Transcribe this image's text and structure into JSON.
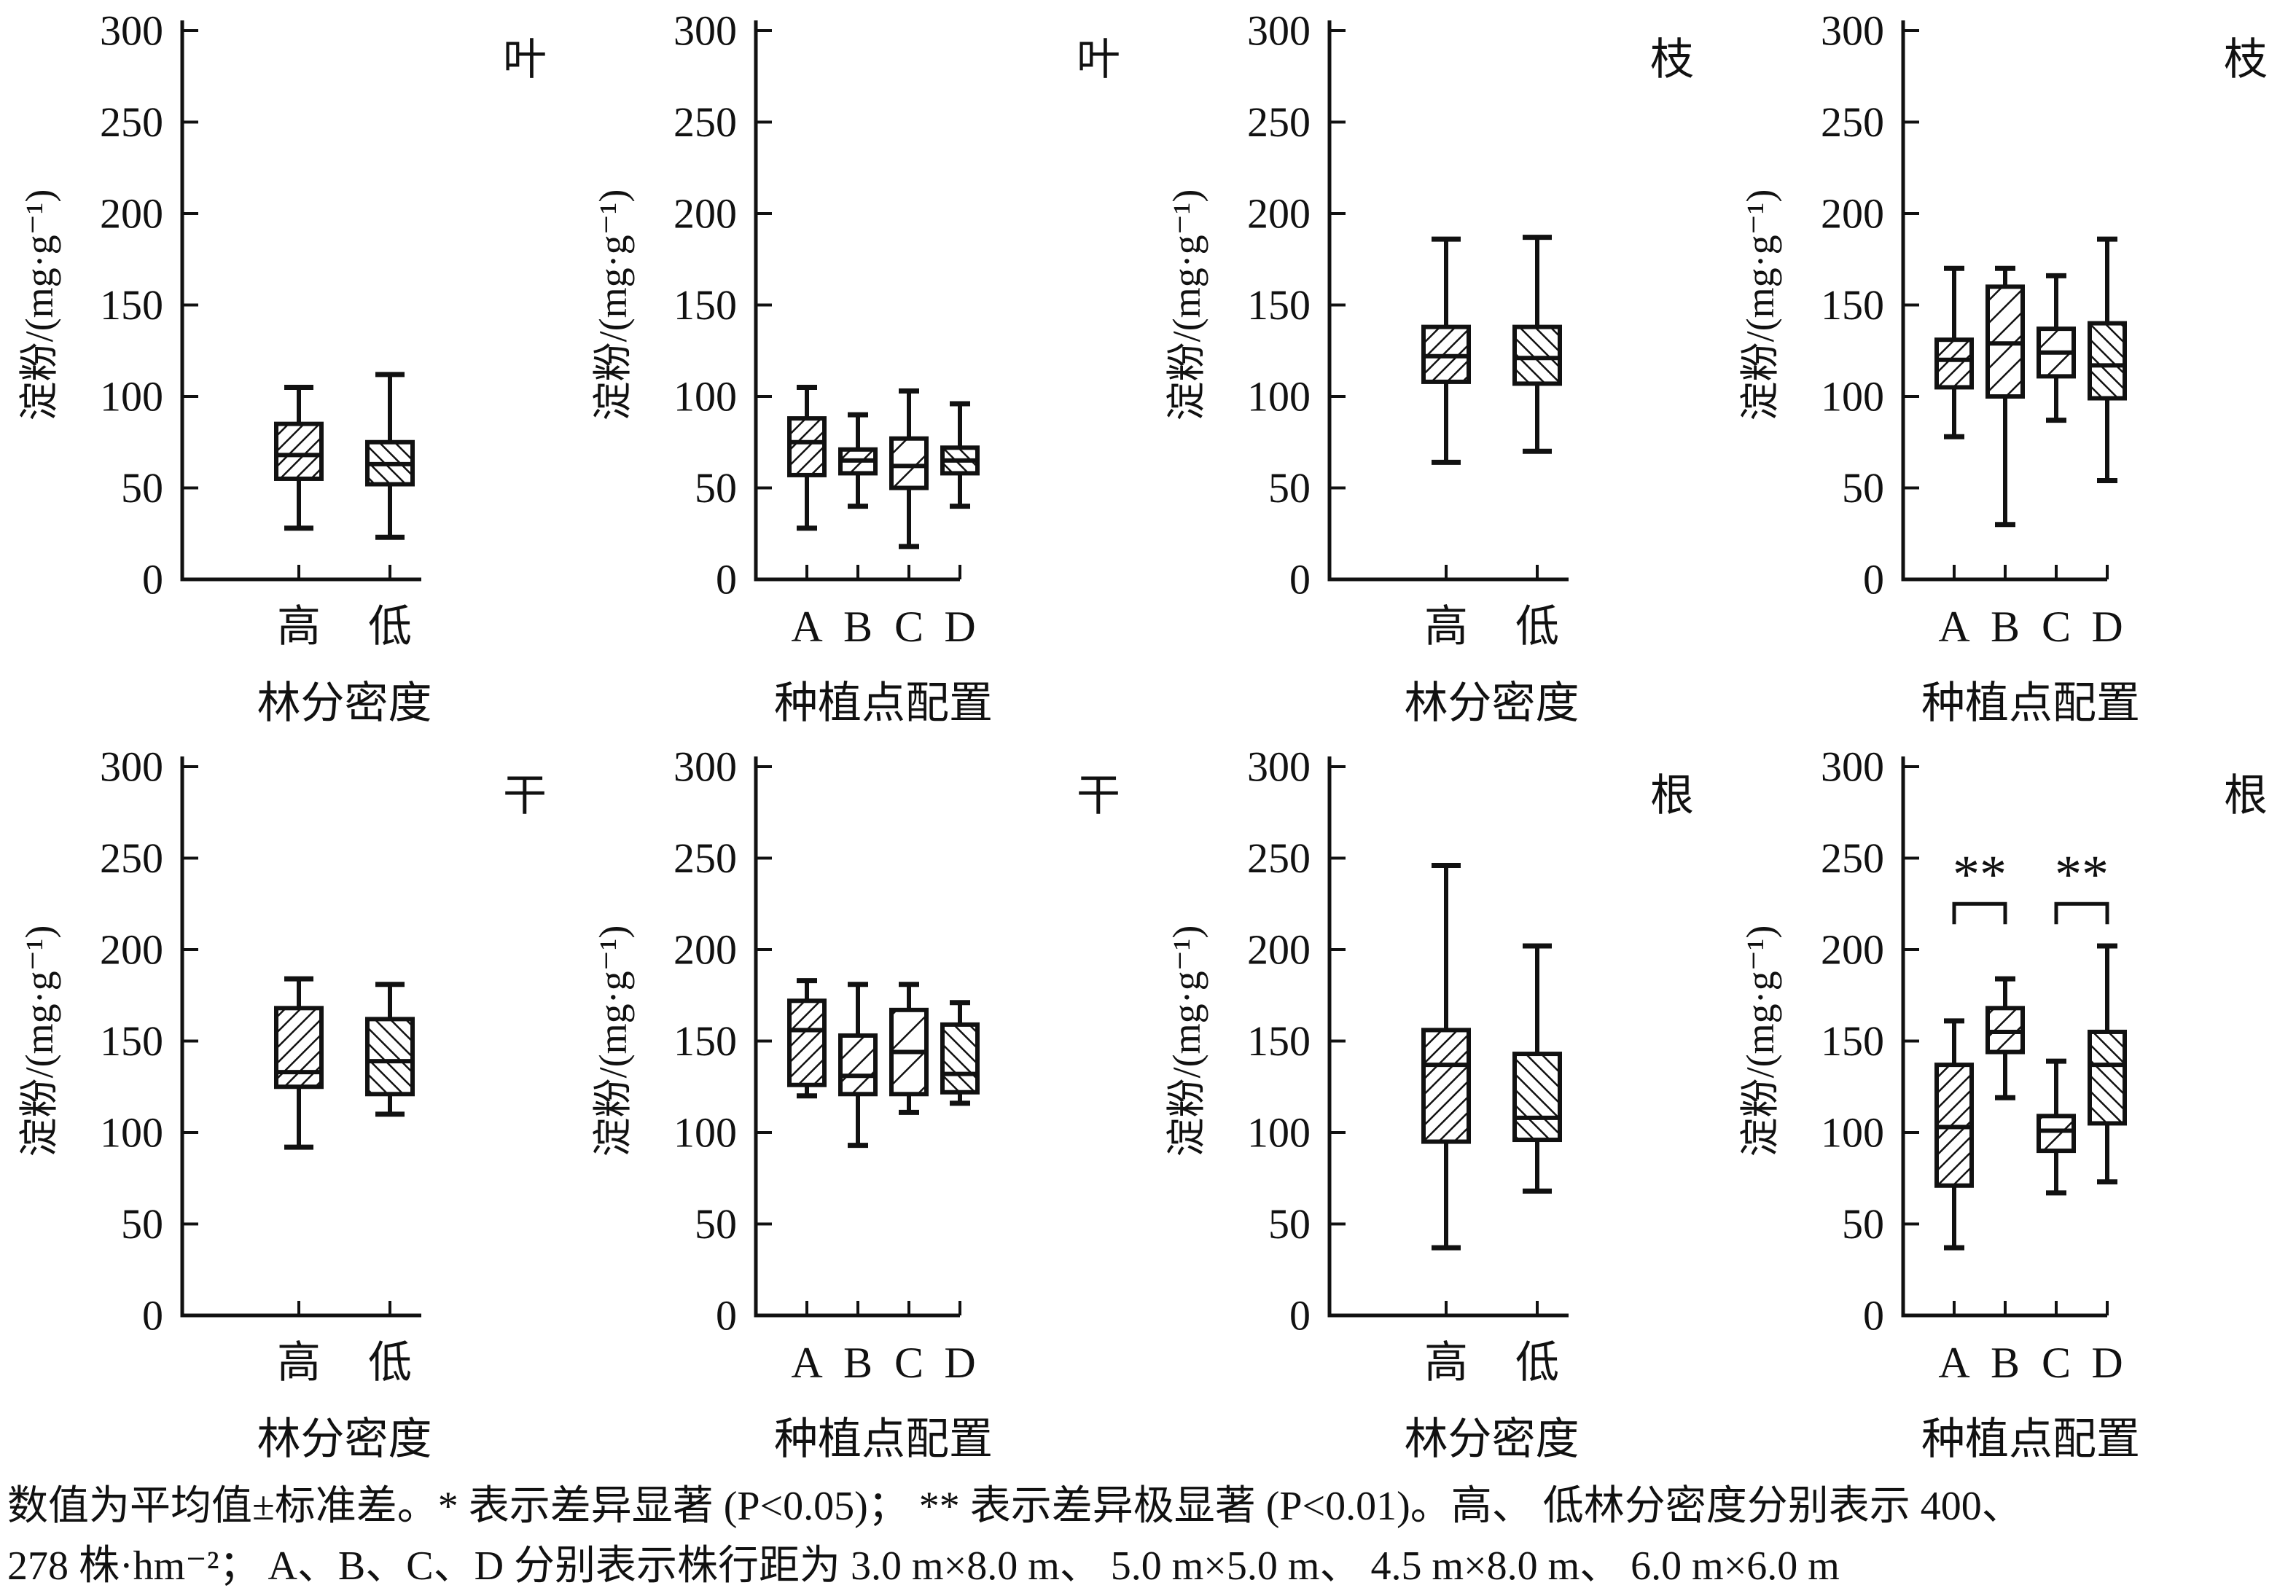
{
  "figure": {
    "ylabel": "淀粉/(mg·g⁻¹)",
    "ink_color": "#111111",
    "background_color": "#ffffff",
    "caption_line1": "数值为平均值±标准差。* 表示差异显著 (P<0.05)； ** 表示差异极显著 (P<0.01)。高、 低林分密度分别表示 400、",
    "caption_line2": "278 株·hm⁻²； A、B、C、D 分别表示株行距为 3.0 m×8.0 m、 5.0 m×5.0 m、 4.5 m×8.0 m、 6.0 m×6.0 m"
  },
  "chart_data": [
    {
      "type": "box",
      "title": "叶",
      "xlabel": "林分密度",
      "ylabel": "淀粉/(mg·g⁻¹)",
      "ylim": [
        0,
        300
      ],
      "yticks": [
        0,
        50,
        100,
        150,
        200,
        250,
        300
      ],
      "grid": false,
      "categories": [
        "高",
        "低"
      ],
      "boxes": [
        {
          "category": "高",
          "hatch": "fwd-dense",
          "whisker_low": 28,
          "q1": 55,
          "median": 68,
          "q3": 85,
          "whisker_high": 105
        },
        {
          "category": "低",
          "hatch": "back",
          "whisker_low": 23,
          "q1": 52,
          "median": 63,
          "q3": 75,
          "whisker_high": 112
        }
      ],
      "significance": []
    },
    {
      "type": "box",
      "title": "叶",
      "xlabel": "种植点配置",
      "ylabel": "淀粉/(mg·g⁻¹)",
      "ylim": [
        0,
        300
      ],
      "yticks": [
        0,
        50,
        100,
        150,
        200,
        250,
        300
      ],
      "grid": false,
      "categories": [
        "A",
        "B",
        "C",
        "D"
      ],
      "boxes": [
        {
          "category": "A",
          "hatch": "fwd-dense",
          "whisker_low": 28,
          "q1": 57,
          "median": 75,
          "q3": 88,
          "whisker_high": 105
        },
        {
          "category": "B",
          "hatch": "fwd-mid",
          "whisker_low": 40,
          "q1": 58,
          "median": 65,
          "q3": 71,
          "whisker_high": 90
        },
        {
          "category": "C",
          "hatch": "fwd-sparse",
          "whisker_low": 18,
          "q1": 50,
          "median": 62,
          "q3": 77,
          "whisker_high": 103
        },
        {
          "category": "D",
          "hatch": "back",
          "whisker_low": 40,
          "q1": 58,
          "median": 65,
          "q3": 72,
          "whisker_high": 96
        }
      ],
      "significance": []
    },
    {
      "type": "box",
      "title": "枝",
      "xlabel": "林分密度",
      "ylabel": "淀粉/(mg·g⁻¹)",
      "ylim": [
        0,
        300
      ],
      "yticks": [
        0,
        50,
        100,
        150,
        200,
        250,
        300
      ],
      "grid": false,
      "categories": [
        "高",
        "低"
      ],
      "boxes": [
        {
          "category": "高",
          "hatch": "fwd-dense",
          "whisker_low": 64,
          "q1": 108,
          "median": 122,
          "q3": 138,
          "whisker_high": 186
        },
        {
          "category": "低",
          "hatch": "back",
          "whisker_low": 70,
          "q1": 107,
          "median": 121,
          "q3": 138,
          "whisker_high": 187
        }
      ],
      "significance": []
    },
    {
      "type": "box",
      "title": "枝",
      "xlabel": "种植点配置",
      "ylabel": "淀粉/(mg·g⁻¹)",
      "ylim": [
        0,
        300
      ],
      "yticks": [
        0,
        50,
        100,
        150,
        200,
        250,
        300
      ],
      "grid": false,
      "categories": [
        "A",
        "B",
        "C",
        "D"
      ],
      "boxes": [
        {
          "category": "A",
          "hatch": "fwd-dense",
          "whisker_low": 78,
          "q1": 105,
          "median": 120,
          "q3": 131,
          "whisker_high": 170
        },
        {
          "category": "B",
          "hatch": "fwd-mid",
          "whisker_low": 30,
          "q1": 100,
          "median": 129,
          "q3": 160,
          "whisker_high": 170
        },
        {
          "category": "C",
          "hatch": "fwd-sparse",
          "whisker_low": 87,
          "q1": 111,
          "median": 124,
          "q3": 137,
          "whisker_high": 166
        },
        {
          "category": "D",
          "hatch": "back",
          "whisker_low": 54,
          "q1": 99,
          "median": 117,
          "q3": 140,
          "whisker_high": 186
        }
      ],
      "significance": []
    },
    {
      "type": "box",
      "title": "干",
      "xlabel": "林分密度",
      "ylabel": "淀粉/(mg·g⁻¹)",
      "ylim": [
        0,
        300
      ],
      "yticks": [
        0,
        50,
        100,
        150,
        200,
        250,
        300
      ],
      "grid": false,
      "categories": [
        "高",
        "低"
      ],
      "boxes": [
        {
          "category": "高",
          "hatch": "fwd-dense",
          "whisker_low": 92,
          "q1": 125,
          "median": 133,
          "q3": 168,
          "whisker_high": 184
        },
        {
          "category": "低",
          "hatch": "back",
          "whisker_low": 110,
          "q1": 121,
          "median": 139,
          "q3": 162,
          "whisker_high": 181
        }
      ],
      "significance": []
    },
    {
      "type": "box",
      "title": "干",
      "xlabel": "种植点配置",
      "ylabel": "淀粉/(mg·g⁻¹)",
      "ylim": [
        0,
        300
      ],
      "yticks": [
        0,
        50,
        100,
        150,
        200,
        250,
        300
      ],
      "grid": false,
      "categories": [
        "A",
        "B",
        "C",
        "D"
      ],
      "boxes": [
        {
          "category": "A",
          "hatch": "fwd-dense",
          "whisker_low": 120,
          "q1": 126,
          "median": 156,
          "q3": 172,
          "whisker_high": 183
        },
        {
          "category": "B",
          "hatch": "fwd-mid",
          "whisker_low": 93,
          "q1": 121,
          "median": 131,
          "q3": 153,
          "whisker_high": 181
        },
        {
          "category": "C",
          "hatch": "fwd-sparse",
          "whisker_low": 111,
          "q1": 121,
          "median": 144,
          "q3": 167,
          "whisker_high": 181
        },
        {
          "category": "D",
          "hatch": "back",
          "whisker_low": 116,
          "q1": 122,
          "median": 132,
          "q3": 159,
          "whisker_high": 171
        }
      ],
      "significance": []
    },
    {
      "type": "box",
      "title": "根",
      "xlabel": "林分密度",
      "ylabel": "淀粉/(mg·g⁻¹)",
      "ylim": [
        0,
        300
      ],
      "yticks": [
        0,
        50,
        100,
        150,
        200,
        250,
        300
      ],
      "grid": false,
      "categories": [
        "高",
        "低"
      ],
      "boxes": [
        {
          "category": "高",
          "hatch": "fwd-dense",
          "whisker_low": 37,
          "q1": 95,
          "median": 137,
          "q3": 156,
          "whisker_high": 246
        },
        {
          "category": "低",
          "hatch": "back",
          "whisker_low": 68,
          "q1": 96,
          "median": 108,
          "q3": 143,
          "whisker_high": 202
        }
      ],
      "significance": []
    },
    {
      "type": "box",
      "title": "根",
      "xlabel": "种植点配置",
      "ylabel": "淀粉/(mg·g⁻¹)",
      "ylim": [
        0,
        300
      ],
      "yticks": [
        0,
        50,
        100,
        150,
        200,
        250,
        300
      ],
      "grid": false,
      "categories": [
        "A",
        "B",
        "C",
        "D"
      ],
      "boxes": [
        {
          "category": "A",
          "hatch": "fwd-dense",
          "whisker_low": 37,
          "q1": 71,
          "median": 103,
          "q3": 137,
          "whisker_high": 161
        },
        {
          "category": "B",
          "hatch": "fwd-mid",
          "whisker_low": 119,
          "q1": 144,
          "median": 155,
          "q3": 168,
          "whisker_high": 184
        },
        {
          "category": "C",
          "hatch": "fwd-sparse",
          "whisker_low": 67,
          "q1": 90,
          "median": 101,
          "q3": 109,
          "whisker_high": 139
        },
        {
          "category": "D",
          "hatch": "back",
          "whisker_low": 73,
          "q1": 105,
          "median": 137,
          "q3": 155,
          "whisker_high": 202
        }
      ],
      "significance": [
        {
          "from": "A",
          "to": "B",
          "label": "**",
          "y": 225
        },
        {
          "from": "C",
          "to": "D",
          "label": "**",
          "y": 225
        }
      ]
    }
  ]
}
